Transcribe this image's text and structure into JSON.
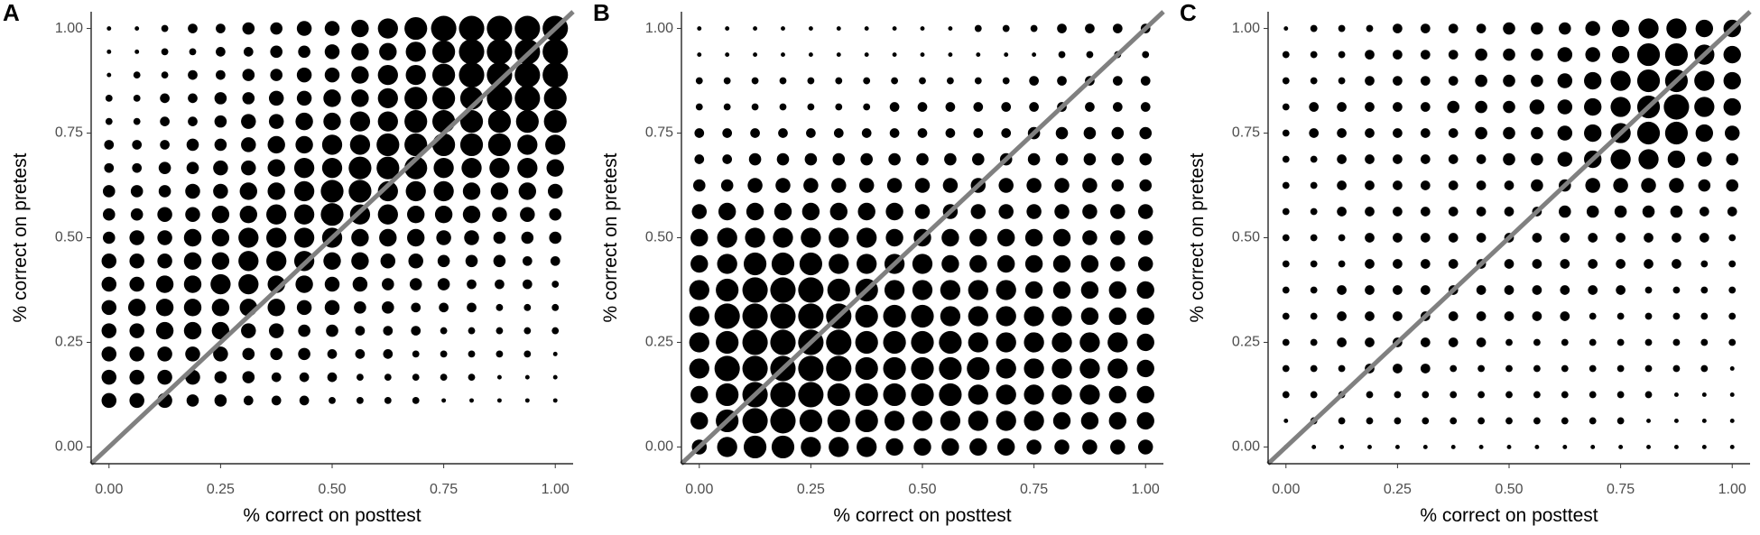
{
  "chart_data": [
    {
      "type": "scatter",
      "panel_label": "A",
      "x_label": "% correct on posttest",
      "y_label": "% correct on pretest",
      "point_color": "#000000",
      "line_color": "#808080",
      "xlim": [
        -0.04,
        1.04
      ],
      "ylim": [
        -0.04,
        1.04
      ],
      "xticks": [
        {
          "value": 0,
          "label": "0.00"
        },
        {
          "value": 0.25,
          "label": "0.25"
        },
        {
          "value": 0.5,
          "label": "0.50"
        },
        {
          "value": 0.75,
          "label": "0.75"
        },
        {
          "value": 1,
          "label": "1.00"
        }
      ],
      "yticks": [
        {
          "value": 0,
          "label": "0.00"
        },
        {
          "value": 0.25,
          "label": "0.25"
        },
        {
          "value": 0.5,
          "label": "0.50"
        },
        {
          "value": 0.75,
          "label": "0.75"
        },
        {
          "value": 1,
          "label": "1.00"
        }
      ],
      "x": [
        0,
        0.0625,
        0.125,
        0.1875,
        0.25,
        0.3125,
        0.375,
        0.4375,
        0.5,
        0.5625,
        0.625,
        0.6875,
        0.75,
        0.8125,
        0.875,
        0.9375,
        1
      ],
      "y": [
        1,
        0.9444,
        0.8889,
        0.8333,
        0.7778,
        0.7222,
        0.6667,
        0.6111,
        0.5556,
        0.5,
        0.4444,
        0.3889,
        0.3333,
        0.2778,
        0.2222,
        0.1667,
        0.1111
      ],
      "sizes": [
        [
          1,
          1,
          2,
          3,
          3,
          4,
          4,
          5,
          5,
          6,
          7,
          8,
          9,
          9,
          9,
          9,
          9
        ],
        [
          1,
          1,
          2,
          2,
          3,
          3,
          4,
          4,
          5,
          6,
          6,
          7,
          8,
          9,
          9,
          9,
          9
        ],
        [
          1,
          2,
          2,
          3,
          3,
          4,
          4,
          5,
          5,
          6,
          7,
          7,
          8,
          9,
          9,
          9,
          9
        ],
        [
          2,
          2,
          3,
          3,
          4,
          4,
          5,
          5,
          6,
          6,
          7,
          8,
          8,
          8,
          9,
          9,
          8
        ],
        [
          2,
          2,
          3,
          3,
          4,
          5,
          5,
          6,
          6,
          7,
          7,
          8,
          8,
          8,
          8,
          8,
          8
        ],
        [
          3,
          3,
          3,
          4,
          4,
          5,
          6,
          6,
          7,
          7,
          8,
          8,
          8,
          8,
          8,
          7,
          7
        ],
        [
          3,
          3,
          4,
          4,
          5,
          5,
          6,
          7,
          7,
          8,
          8,
          8,
          7,
          7,
          7,
          7,
          6
        ],
        [
          4,
          4,
          4,
          5,
          5,
          6,
          6,
          7,
          8,
          8,
          7,
          7,
          7,
          6,
          6,
          6,
          5
        ],
        [
          4,
          4,
          5,
          5,
          6,
          6,
          7,
          7,
          8,
          7,
          7,
          6,
          6,
          6,
          5,
          5,
          4
        ],
        [
          4,
          5,
          5,
          6,
          6,
          7,
          7,
          7,
          7,
          6,
          6,
          6,
          5,
          5,
          4,
          4,
          4
        ],
        [
          5,
          5,
          5,
          6,
          6,
          7,
          7,
          7,
          6,
          6,
          5,
          5,
          4,
          4,
          4,
          3,
          3
        ],
        [
          5,
          5,
          6,
          6,
          7,
          7,
          6,
          6,
          5,
          5,
          4,
          4,
          4,
          3,
          3,
          3,
          2
        ],
        [
          5,
          6,
          6,
          6,
          6,
          6,
          6,
          5,
          5,
          4,
          4,
          3,
          3,
          3,
          2,
          2,
          2
        ],
        [
          5,
          5,
          6,
          6,
          6,
          5,
          5,
          4,
          4,
          3,
          3,
          3,
          2,
          2,
          2,
          2,
          2
        ],
        [
          5,
          5,
          5,
          5,
          5,
          4,
          4,
          4,
          3,
          3,
          3,
          2,
          2,
          2,
          2,
          2,
          1
        ],
        [
          5,
          5,
          5,
          5,
          4,
          4,
          3,
          3,
          3,
          2,
          2,
          2,
          2,
          2,
          1,
          1,
          1
        ],
        [
          5,
          5,
          5,
          4,
          4,
          3,
          3,
          3,
          2,
          2,
          2,
          2,
          1,
          1,
          1,
          1,
          1
        ]
      ]
    },
    {
      "type": "scatter",
      "panel_label": "B",
      "x_label": "% correct on posttest",
      "y_label": "% correct on pretest",
      "point_color": "#000000",
      "line_color": "#808080",
      "xlim": [
        -0.04,
        1.04
      ],
      "ylim": [
        -0.04,
        1.04
      ],
      "xticks": [
        {
          "value": 0,
          "label": "0.00"
        },
        {
          "value": 0.25,
          "label": "0.25"
        },
        {
          "value": 0.5,
          "label": "0.50"
        },
        {
          "value": 0.75,
          "label": "0.75"
        },
        {
          "value": 1,
          "label": "1.00"
        }
      ],
      "yticks": [
        {
          "value": 0,
          "label": "0.00"
        },
        {
          "value": 0.25,
          "label": "0.25"
        },
        {
          "value": 0.5,
          "label": "0.50"
        },
        {
          "value": 0.75,
          "label": "0.75"
        },
        {
          "value": 1,
          "label": "1.00"
        }
      ],
      "x": [
        0,
        0.0625,
        0.125,
        0.1875,
        0.25,
        0.3125,
        0.375,
        0.4375,
        0.5,
        0.5625,
        0.625,
        0.6875,
        0.75,
        0.8125,
        0.875,
        0.9375,
        1
      ],
      "y": [
        1,
        0.9375,
        0.875,
        0.8125,
        0.75,
        0.6875,
        0.625,
        0.5625,
        0.5,
        0.4375,
        0.375,
        0.3125,
        0.25,
        0.1875,
        0.125,
        0.0625,
        0
      ],
      "sizes": [
        [
          1,
          1,
          1,
          1,
          1,
          1,
          1,
          1,
          1,
          1,
          2,
          2,
          2,
          3,
          3,
          3,
          3
        ],
        [
          1,
          1,
          1,
          1,
          1,
          1,
          1,
          1,
          1,
          1,
          1,
          1,
          1,
          2,
          2,
          2,
          2
        ],
        [
          2,
          2,
          2,
          2,
          2,
          2,
          2,
          2,
          2,
          2,
          2,
          2,
          3,
          3,
          3,
          3,
          3
        ],
        [
          2,
          2,
          2,
          2,
          2,
          2,
          2,
          3,
          3,
          3,
          3,
          3,
          3,
          3,
          3,
          3,
          3
        ],
        [
          3,
          3,
          3,
          3,
          3,
          3,
          3,
          3,
          3,
          3,
          3,
          3,
          4,
          4,
          4,
          4,
          4
        ],
        [
          3,
          3,
          4,
          4,
          4,
          4,
          4,
          4,
          4,
          4,
          4,
          4,
          4,
          4,
          4,
          4,
          4
        ],
        [
          4,
          4,
          5,
          5,
          5,
          5,
          5,
          5,
          5,
          5,
          5,
          5,
          5,
          5,
          5,
          4,
          4
        ],
        [
          5,
          6,
          6,
          6,
          6,
          6,
          6,
          6,
          5,
          5,
          5,
          5,
          5,
          5,
          5,
          5,
          5
        ],
        [
          6,
          7,
          7,
          7,
          7,
          7,
          7,
          6,
          6,
          6,
          6,
          6,
          6,
          6,
          5,
          5,
          5
        ],
        [
          6,
          7,
          8,
          8,
          8,
          7,
          7,
          7,
          7,
          6,
          6,
          6,
          6,
          6,
          6,
          5,
          5
        ],
        [
          7,
          8,
          9,
          9,
          9,
          8,
          8,
          7,
          7,
          7,
          7,
          7,
          6,
          6,
          6,
          6,
          6
        ],
        [
          7,
          9,
          9,
          9,
          9,
          9,
          8,
          8,
          8,
          7,
          7,
          7,
          7,
          7,
          6,
          6,
          6
        ],
        [
          7,
          8,
          9,
          9,
          9,
          9,
          8,
          8,
          8,
          8,
          7,
          7,
          7,
          7,
          7,
          7,
          6
        ],
        [
          7,
          9,
          9,
          9,
          9,
          9,
          8,
          8,
          8,
          8,
          8,
          7,
          7,
          7,
          7,
          7,
          6
        ],
        [
          6,
          8,
          9,
          9,
          9,
          8,
          8,
          8,
          8,
          8,
          7,
          7,
          7,
          7,
          7,
          6,
          6
        ],
        [
          6,
          8,
          9,
          9,
          8,
          8,
          8,
          7,
          7,
          7,
          7,
          7,
          7,
          6,
          6,
          6,
          6
        ],
        [
          5,
          7,
          8,
          8,
          7,
          7,
          7,
          6,
          6,
          6,
          6,
          6,
          5,
          5,
          5,
          5,
          5
        ]
      ]
    },
    {
      "type": "scatter",
      "panel_label": "C",
      "x_label": "% correct on posttest",
      "y_label": "% correct on pretest",
      "point_color": "#000000",
      "line_color": "#808080",
      "xlim": [
        -0.04,
        1.04
      ],
      "ylim": [
        -0.04,
        1.04
      ],
      "xticks": [
        {
          "value": 0,
          "label": "0.00"
        },
        {
          "value": 0.25,
          "label": "0.25"
        },
        {
          "value": 0.5,
          "label": "0.50"
        },
        {
          "value": 0.75,
          "label": "0.75"
        },
        {
          "value": 1,
          "label": "1.00"
        }
      ],
      "yticks": [
        {
          "value": 0,
          "label": "0.00"
        },
        {
          "value": 0.25,
          "label": "0.25"
        },
        {
          "value": 0.5,
          "label": "0.50"
        },
        {
          "value": 0.75,
          "label": "0.75"
        },
        {
          "value": 1,
          "label": "1.00"
        }
      ],
      "x": [
        0,
        0.0625,
        0.125,
        0.1875,
        0.25,
        0.3125,
        0.375,
        0.4375,
        0.5,
        0.5625,
        0.625,
        0.6875,
        0.75,
        0.8125,
        0.875,
        0.9375,
        1
      ],
      "y": [
        1,
        0.9375,
        0.875,
        0.8125,
        0.75,
        0.6875,
        0.625,
        0.5625,
        0.5,
        0.4375,
        0.375,
        0.3125,
        0.25,
        0.1875,
        0.125,
        0.0625,
        0
      ],
      "sizes": [
        [
          1,
          2,
          2,
          2,
          3,
          3,
          3,
          3,
          4,
          4,
          4,
          5,
          6,
          7,
          7,
          6,
          6
        ],
        [
          2,
          2,
          2,
          3,
          3,
          3,
          3,
          4,
          4,
          4,
          5,
          5,
          6,
          8,
          8,
          7,
          6
        ],
        [
          2,
          2,
          2,
          3,
          3,
          3,
          3,
          4,
          4,
          4,
          5,
          6,
          7,
          8,
          8,
          7,
          6
        ],
        [
          2,
          3,
          3,
          3,
          3,
          3,
          4,
          4,
          4,
          5,
          5,
          6,
          7,
          8,
          9,
          7,
          6
        ],
        [
          2,
          3,
          3,
          3,
          3,
          3,
          3,
          4,
          4,
          4,
          5,
          6,
          7,
          8,
          8,
          6,
          5
        ],
        [
          2,
          2,
          3,
          3,
          3,
          3,
          3,
          3,
          4,
          4,
          5,
          6,
          7,
          7,
          6,
          5,
          4
        ],
        [
          2,
          2,
          3,
          3,
          3,
          3,
          3,
          3,
          3,
          4,
          4,
          5,
          5,
          5,
          5,
          4,
          4
        ],
        [
          2,
          2,
          3,
          3,
          3,
          3,
          3,
          3,
          3,
          3,
          4,
          4,
          4,
          4,
          4,
          3,
          3
        ],
        [
          2,
          2,
          2,
          3,
          3,
          3,
          3,
          3,
          3,
          3,
          3,
          3,
          3,
          3,
          3,
          3,
          2
        ],
        [
          2,
          2,
          2,
          3,
          3,
          3,
          3,
          3,
          3,
          3,
          3,
          3,
          3,
          3,
          3,
          2,
          2
        ],
        [
          2,
          2,
          3,
          3,
          3,
          3,
          3,
          3,
          3,
          3,
          3,
          3,
          3,
          2,
          2,
          2,
          2
        ],
        [
          2,
          2,
          3,
          3,
          3,
          3,
          3,
          3,
          3,
          3,
          3,
          2,
          2,
          2,
          2,
          2,
          2
        ],
        [
          2,
          2,
          3,
          3,
          3,
          3,
          3,
          3,
          2,
          2,
          2,
          2,
          2,
          2,
          2,
          2,
          2
        ],
        [
          2,
          2,
          2,
          3,
          3,
          3,
          2,
          2,
          2,
          2,
          2,
          2,
          2,
          2,
          2,
          2,
          1
        ],
        [
          2,
          2,
          2,
          2,
          2,
          2,
          2,
          2,
          2,
          2,
          2,
          2,
          2,
          2,
          1,
          1,
          1
        ],
        [
          1,
          2,
          2,
          2,
          2,
          2,
          2,
          2,
          2,
          2,
          2,
          2,
          2,
          1,
          1,
          1,
          1
        ],
        [
          1,
          1,
          1,
          1,
          1,
          1,
          1,
          1,
          1,
          1,
          1,
          1,
          1,
          1,
          1,
          1,
          1
        ]
      ]
    }
  ]
}
